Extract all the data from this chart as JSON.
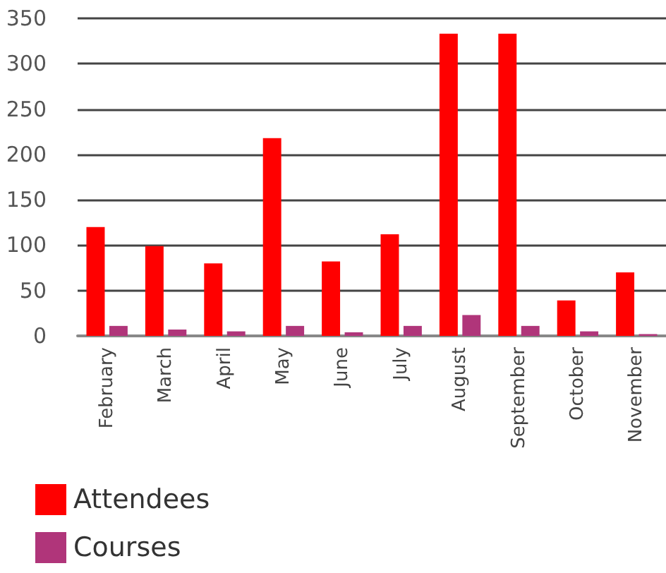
{
  "chart_data": {
    "type": "bar",
    "categories": [
      "February",
      "March",
      "April",
      "May",
      "June",
      "July",
      "August",
      "September",
      "October",
      "November"
    ],
    "series": [
      {
        "name": "Attendees",
        "color": "#ff0000",
        "values": [
          120,
          99,
          80,
          218,
          82,
          112,
          333,
          333,
          39,
          70
        ]
      },
      {
        "name": "Courses",
        "color": "#b0357a",
        "values": [
          11,
          7,
          5,
          11,
          4,
          11,
          23,
          11,
          5,
          2
        ]
      }
    ],
    "ylim": [
      0,
      350
    ],
    "yticks": [
      0,
      50,
      100,
      150,
      200,
      250,
      300,
      350
    ],
    "grid": "y",
    "legend": "bottom left"
  }
}
